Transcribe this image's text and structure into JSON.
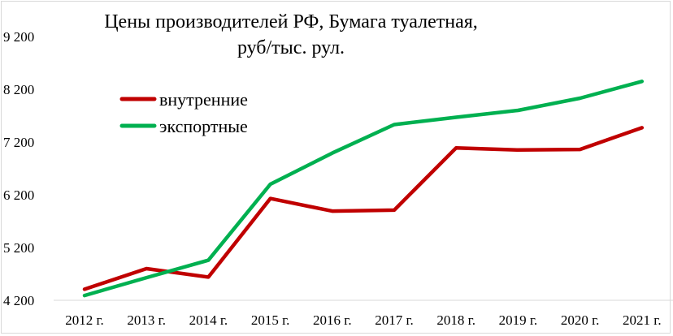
{
  "chart_data": {
    "type": "line",
    "title_lines": [
      "Цены производителей РФ, Бумага туалетная,",
      "руб/тыс. рул."
    ],
    "categories": [
      "2012 г.",
      "2013 г.",
      "2014 г.",
      "2015 г.",
      "2016 г.",
      "2017 г.",
      "2018 г.",
      "2019 г.",
      "2020 г.",
      "2021 г."
    ],
    "y_ticks": [
      4200,
      5200,
      6200,
      7200,
      8200,
      9200
    ],
    "y_tick_labels": [
      "4 200",
      "5 200",
      "6 200",
      "7 200",
      "8 200",
      "9 200"
    ],
    "ylim": [
      4200,
      9200
    ],
    "grid": false,
    "legend_position": "top-left",
    "series": [
      {
        "name": "внутренние",
        "color": "#c00000",
        "values": [
          4410,
          4800,
          4640,
          6130,
          5890,
          5910,
          7090,
          7050,
          7060,
          7470
        ]
      },
      {
        "name": "экспортные",
        "color": "#00b050",
        "values": [
          4290,
          4630,
          4960,
          6400,
          6990,
          7530,
          7670,
          7800,
          8030,
          8350
        ]
      }
    ]
  }
}
